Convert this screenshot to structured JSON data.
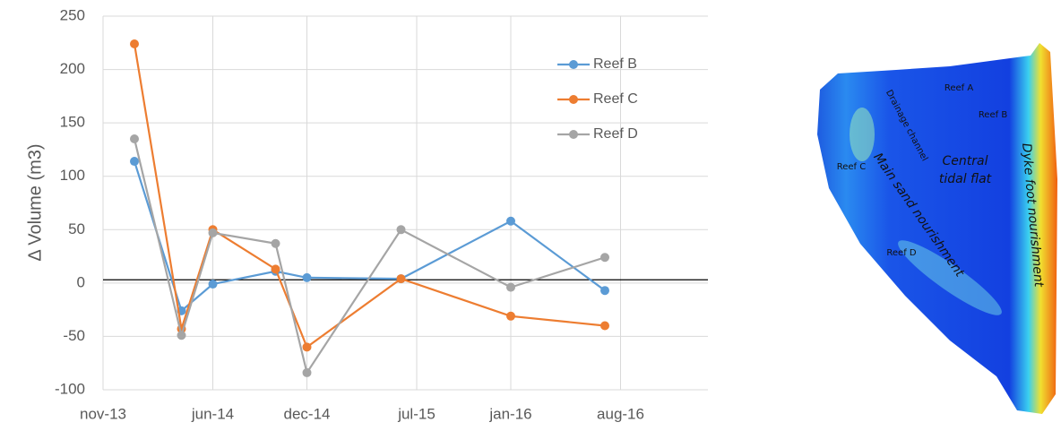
{
  "chart_data": {
    "type": "line",
    "y_label": "Δ Volume (m3)",
    "x": [
      "2014-01",
      "2014-04",
      "2014-06",
      "2014-10",
      "2014-12",
      "2015-06",
      "2016-01",
      "2016-07"
    ],
    "xlim": [
      "2013-11",
      "2017-01"
    ],
    "xticks": [
      {
        "value": "2013-11",
        "label": "nov-13"
      },
      {
        "value": "2014-06",
        "label": "jun-14"
      },
      {
        "value": "2014-12",
        "label": "dec-14"
      },
      {
        "value": "2015-07",
        "label": "jul-15"
      },
      {
        "value": "2016-01",
        "label": "jan-16"
      },
      {
        "value": "2016-08",
        "label": "aug-16"
      }
    ],
    "ylim": [
      -100,
      250
    ],
    "yticks": [
      -100,
      -50,
      0,
      50,
      100,
      150,
      200,
      250
    ],
    "grid": true,
    "reference_line": 3,
    "legend": "upper-right",
    "series": [
      {
        "name": "Reef B",
        "color": "#5b9bd5",
        "values": [
          114,
          -26,
          -1,
          11,
          5,
          4,
          58,
          -7
        ]
      },
      {
        "name": "Reef C",
        "color": "#ed7d31",
        "values": [
          224,
          -43,
          50,
          13,
          -60,
          4,
          -31,
          -40
        ]
      },
      {
        "name": "Reef D",
        "color": "#a5a5a5",
        "values": [
          135,
          -49,
          47,
          37,
          -84,
          50,
          -4,
          24
        ]
      }
    ]
  },
  "map": {
    "labels": [
      "Reef A",
      "Reef B",
      "Reef C",
      "Reef D",
      "Drainage channel",
      "Main sand nourishment",
      "Central",
      "tidal flat",
      "Dyke foot nourishment"
    ]
  }
}
